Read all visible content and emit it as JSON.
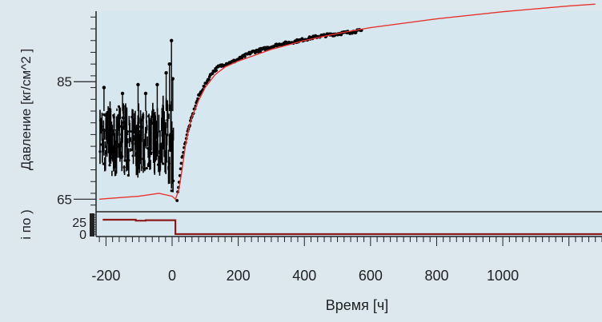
{
  "chart_data": {
    "type": "line",
    "colors": {
      "background": "#dce8ee",
      "plot_background": "#d6e7ef",
      "observed": "#000000",
      "model": "#e8342f",
      "rate": "#8b1a1a",
      "axis": "#222222"
    },
    "upper_panel": {
      "ylabel": "Давление [кг/см^2 ]",
      "ytick_labels": [
        "65",
        "85"
      ],
      "ylim": [
        63,
        97
      ],
      "series": [
        {
          "role": "observed-scatter",
          "band": [
            [
              -218,
              71,
              81
            ],
            [
              -205,
              69,
              80
            ],
            [
              -190,
              70,
              82
            ],
            [
              -175,
              68,
              80
            ],
            [
              -160,
              70,
              81
            ],
            [
              -145,
              69,
              82
            ],
            [
              -130,
              69,
              80
            ],
            [
              -115,
              70,
              81
            ],
            [
              -100,
              68,
              82
            ],
            [
              -85,
              69,
              80
            ],
            [
              -70,
              70,
              81
            ],
            [
              -55,
              69,
              82
            ],
            [
              -40,
              68,
              81
            ],
            [
              -25,
              70,
              83
            ],
            [
              -12,
              67,
              82
            ],
            [
              -3,
              66,
              82
            ],
            [
              5,
              66,
              77
            ]
          ],
          "outliers": [
            [
              -206,
              84
            ],
            [
              -150,
              83
            ],
            [
              -103,
              84.5
            ],
            [
              -80,
              83
            ],
            [
              -45,
              84.5
            ],
            [
              -18,
              86.5
            ],
            [
              -8,
              88
            ],
            [
              -2,
              92
            ],
            [
              2,
              85.5
            ]
          ],
          "points": [
            [
              15,
              65
            ],
            [
              30,
              72
            ],
            [
              45,
              76
            ],
            [
              60,
              79
            ],
            [
              80,
              82.5
            ],
            [
              100,
              84.5
            ],
            [
              120,
              86.5
            ],
            [
              140,
              87.5
            ],
            [
              160,
              88
            ],
            [
              180,
              88.3
            ],
            [
              200,
              88.8
            ],
            [
              240,
              90
            ],
            [
              280,
              90.6
            ],
            [
              320,
              91.3
            ],
            [
              360,
              91.7
            ],
            [
              400,
              92.2
            ],
            [
              440,
              92.7
            ],
            [
              480,
              93
            ],
            [
              520,
              93.3
            ],
            [
              560,
              93.6
            ],
            [
              575,
              93.7
            ]
          ]
        },
        {
          "role": "model-line",
          "points": [
            [
              -220,
              65
            ],
            [
              -150,
              65.3
            ],
            [
              -100,
              65.5
            ],
            [
              -40,
              66
            ],
            [
              0,
              65.5
            ],
            [
              10,
              65
            ],
            [
              20,
              66.5
            ],
            [
              30,
              70
            ],
            [
              40,
              74
            ],
            [
              50,
              77
            ],
            [
              60,
              79
            ],
            [
              80,
              81.8
            ],
            [
              100,
              84
            ],
            [
              130,
              86.2
            ],
            [
              160,
              87.5
            ],
            [
              200,
              88.5
            ],
            [
              300,
              90.5
            ],
            [
              400,
              92
            ],
            [
              500,
              93.2
            ],
            [
              600,
              94.2
            ],
            [
              800,
              95.7
            ],
            [
              1000,
              96.9
            ],
            [
              1200,
              97.9
            ],
            [
              1280,
              98.2
            ]
          ]
        }
      ]
    },
    "lower_panel": {
      "ylabel": "",
      "ylabel_partial": "i по )",
      "ytick_labels": [
        "0",
        "25"
      ],
      "ylim": [
        -5,
        45
      ],
      "series": [
        {
          "role": "rate-step",
          "points": [
            [
              -210,
              30
            ],
            [
              -110,
              30
            ],
            [
              -110,
              28
            ],
            [
              -80,
              28
            ],
            [
              -80,
              29
            ],
            [
              10,
              29
            ],
            [
              10,
              0
            ],
            [
              1300,
              0
            ]
          ]
        }
      ]
    },
    "x": {
      "xlabel": "Время  [ч]",
      "xlim": [
        -230,
        1300
      ],
      "xticks": [
        -200,
        0,
        200,
        400,
        600,
        800,
        1000
      ]
    }
  }
}
